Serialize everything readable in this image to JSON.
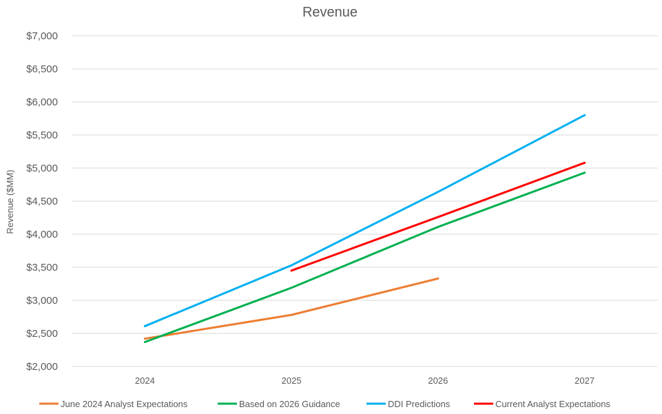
{
  "chart_data": {
    "type": "line",
    "title": "Revenue",
    "xlabel": "",
    "ylabel": "Revenue ($MM)",
    "categories": [
      "2024",
      "2025",
      "2026",
      "2027"
    ],
    "ylim": [
      2000,
      7000
    ],
    "yticks": [
      2000,
      2500,
      3000,
      3500,
      4000,
      4500,
      5000,
      5500,
      6000,
      6500,
      7000
    ],
    "ytick_labels": [
      "$2,000",
      "$2,500",
      "$3,000",
      "$3,500",
      "$4,000",
      "$4,500",
      "$5,000",
      "$5,500",
      "$6,000",
      "$6,500",
      "$7,000"
    ],
    "grid": true,
    "legend_position": "bottom",
    "series": [
      {
        "name": "June 2024 Analyst Expectations",
        "color": "#ED7D31",
        "values": [
          2420,
          2780,
          3330,
          null
        ]
      },
      {
        "name": "Based on 2026 Guidance",
        "color": "#00B050",
        "values": [
          2370,
          3190,
          4110,
          4930
        ]
      },
      {
        "name": "DDI Predictions",
        "color": "#00B0F0",
        "values": [
          2610,
          3530,
          4640,
          5800
        ]
      },
      {
        "name": "Current Analyst Expectations",
        "color": "#FF0000",
        "values": [
          null,
          3450,
          4260,
          5080
        ]
      }
    ]
  }
}
